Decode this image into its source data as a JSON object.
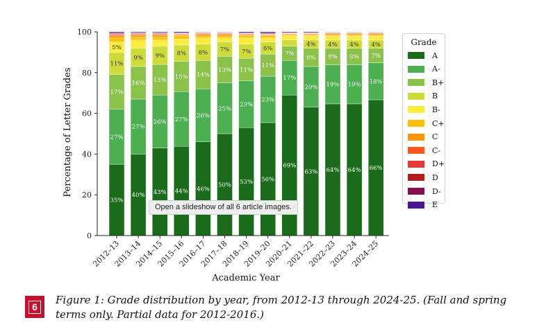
{
  "chart_data": {
    "type": "bar",
    "stacked": true,
    "xlabel": "Academic Year",
    "ylabel": "Percentage of Letter Grades",
    "ylim": [
      0,
      100
    ],
    "yticks": [
      0,
      20,
      40,
      60,
      80,
      100
    ],
    "legend_title": "Grade",
    "legend_position": "right",
    "grid": false,
    "categories": [
      "2012–13",
      "2013–14",
      "2014–15",
      "2015–16",
      "2016–17",
      "2017–18",
      "2018–19",
      "2019–20",
      "2020–21",
      "2021–22",
      "2022–23",
      "2023–24",
      "2024–25"
    ],
    "series": [
      {
        "name": "A",
        "color": "#1a6b1a",
        "values": [
          35,
          40,
          43,
          44,
          46,
          50,
          53,
          56,
          69,
          63,
          64,
          64,
          66
        ]
      },
      {
        "name": "A-",
        "color": "#4caf50",
        "values": [
          27,
          27,
          26,
          27,
          26,
          25,
          23,
          23,
          17,
          20,
          19,
          19,
          18
        ]
      },
      {
        "name": "B+",
        "color": "#8bc34a",
        "values": [
          17,
          16,
          15,
          15,
          14,
          13,
          11,
          11,
          7,
          9,
          8,
          8,
          7
        ]
      },
      {
        "name": "B",
        "color": "#cddc39",
        "values": [
          11,
          9,
          9,
          8,
          8,
          7,
          7,
          6,
          3,
          4,
          4,
          4,
          4
        ]
      },
      {
        "name": "B-",
        "color": "#ffeb3b",
        "values": [
          5,
          4,
          3,
          3,
          3,
          2,
          3,
          2,
          2,
          2,
          2,
          2,
          2
        ]
      },
      {
        "name": "C+",
        "color": "#ffc107",
        "values": [
          2,
          1.5,
          1.5,
          1.5,
          1,
          1,
          1,
          1,
          0.6,
          0.6,
          0.6,
          0.6,
          0.6
        ]
      },
      {
        "name": "C",
        "color": "#ff9800",
        "values": [
          1,
          1,
          1,
          0.6,
          0.8,
          0.8,
          0.6,
          0.5,
          0.4,
          0.4,
          0.5,
          0.5,
          0.5
        ]
      },
      {
        "name": "C-",
        "color": "#ff5722",
        "values": [
          0.5,
          0.4,
          0.4,
          0.3,
          0.4,
          0.4,
          0.3,
          0.2,
          0.2,
          0.2,
          0.3,
          0.3,
          0.3
        ]
      },
      {
        "name": "D+",
        "color": "#e53935",
        "values": [
          0.3,
          0.2,
          0.2,
          0.2,
          0.2,
          0.2,
          0.2,
          0.2,
          0.1,
          0.2,
          0.2,
          0.2,
          0.2
        ]
      },
      {
        "name": "D",
        "color": "#b71c1c",
        "values": [
          0.4,
          0.3,
          0.3,
          0.2,
          0.2,
          0.2,
          0.2,
          0.3,
          0.2,
          0.1,
          0.1,
          0.1,
          0.1
        ]
      },
      {
        "name": "D-",
        "color": "#880e4f",
        "values": [
          0.3,
          0.2,
          0.2,
          0.2,
          0.2,
          0.2,
          0.2,
          0.2,
          0.1,
          0.1,
          0.1,
          0.1,
          0.1
        ]
      },
      {
        "name": "E",
        "color": "#4a148c",
        "values": [
          0.5,
          0.4,
          0.4,
          0.5,
          0.2,
          0.2,
          0.5,
          0.6,
          0.4,
          0.4,
          0.2,
          0.2,
          0.2
        ]
      }
    ],
    "labels": [
      {
        "series": "A",
        "values": [
          "35%",
          "40%",
          "43%",
          "44%",
          "46%",
          "50%",
          "53%",
          "56%",
          "69%",
          "63%",
          "64%",
          "64%",
          "66%"
        ]
      },
      {
        "series": "A-",
        "values": [
          "27%",
          "27%",
          "26%",
          "27%",
          "26%",
          "25%",
          "23%",
          "23%",
          "17%",
          "20%",
          "19%",
          "19%",
          "18%"
        ]
      },
      {
        "series": "B+",
        "values": [
          "17%",
          "16%",
          "15%",
          "15%",
          "14%",
          "13%",
          "11%",
          "11%",
          "7%",
          "9%",
          "8%",
          "8%",
          "7%"
        ]
      },
      {
        "series": "B",
        "values": [
          "11%",
          "9%",
          "9%",
          "8%",
          "8%",
          "7%",
          "7%",
          "6%",
          "",
          "4%",
          "4%",
          "4%",
          "4%"
        ]
      },
      {
        "series": "B-",
        "values": [
          "5%",
          "",
          "",
          "",
          "",
          "",
          "",
          "",
          "",
          "",
          "",
          "",
          ""
        ]
      }
    ]
  },
  "tooltip": "Open a slideshow of all 6 article images.",
  "figure": {
    "number": "6",
    "caption": "Figure 1: Grade distribution by year, from 2012-13 through 2024-25. (Fall and spring terms only. Partial data for 2012-2016.)"
  }
}
